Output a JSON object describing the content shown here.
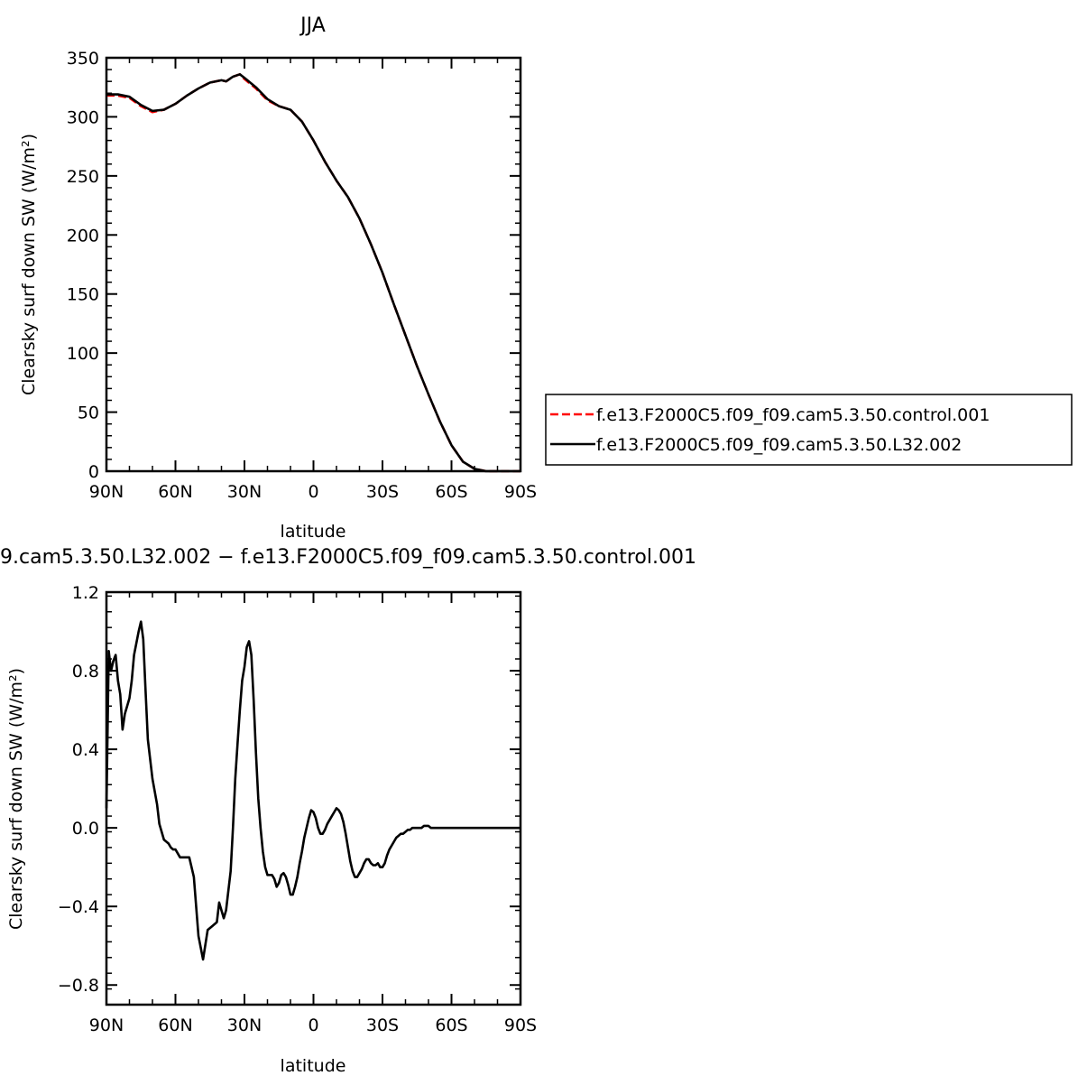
{
  "chart_data": [
    {
      "type": "line",
      "title": "JJA",
      "xlabel": "latitude",
      "ylabel": "Clearsky surf down SW (W/m²)",
      "xlim": [
        90,
        -90
      ],
      "ylim": [
        0,
        350
      ],
      "x_ticks": [
        90,
        60,
        30,
        0,
        -30,
        -60,
        -90
      ],
      "x_tick_labels": [
        "90N",
        "60N",
        "30N",
        "0",
        "30S",
        "60S",
        "90S"
      ],
      "y_ticks": [
        0,
        50,
        100,
        150,
        200,
        250,
        300,
        350
      ],
      "y_tick_labels": [
        "0",
        "50",
        "100",
        "150",
        "200",
        "250",
        "300",
        "350"
      ],
      "legend_position": "right",
      "series": [
        {
          "name": "f.e13.F2000C5.f09_f09.cam5.3.50.control.001",
          "color": "#ff0000",
          "dash": "dashed",
          "x": [
            90,
            85,
            80,
            75,
            70,
            65,
            60,
            55,
            50,
            45,
            40,
            38,
            35,
            32,
            30,
            25,
            20,
            15,
            10,
            5,
            0,
            -5,
            -10,
            -15,
            -20,
            -25,
            -30,
            -35,
            -40,
            -45,
            -50,
            -55,
            -60,
            -65,
            -70,
            -75,
            -80,
            -85,
            -90
          ],
          "y": [
            318,
            318,
            316,
            309,
            304,
            306,
            311,
            318,
            324,
            329,
            331,
            330,
            334,
            336,
            332,
            324,
            314,
            309,
            306,
            296,
            280,
            262,
            246,
            232,
            214,
            192,
            168,
            141,
            115,
            89,
            65,
            42,
            22,
            8,
            2,
            0,
            0,
            0,
            0
          ]
        },
        {
          "name": "f.e13.F2000C5.f09_f09.cam5.3.50.L32.002",
          "color": "#000000",
          "dash": "solid",
          "x": [
            90,
            85,
            80,
            75,
            70,
            65,
            60,
            55,
            50,
            45,
            40,
            38,
            35,
            32,
            30,
            25,
            20,
            15,
            10,
            5,
            0,
            -5,
            -10,
            -15,
            -20,
            -25,
            -30,
            -35,
            -40,
            -45,
            -50,
            -55,
            -60,
            -65,
            -70,
            -75,
            -80,
            -85,
            -90
          ],
          "y": [
            319,
            319,
            317,
            310,
            305,
            306,
            311,
            318,
            324,
            329,
            331,
            330,
            334,
            336,
            333,
            325,
            315,
            309,
            306,
            296,
            280,
            262,
            246,
            232,
            214,
            192,
            168,
            141,
            115,
            89,
            65,
            42,
            22,
            8,
            2,
            0,
            0,
            0,
            0
          ]
        }
      ]
    },
    {
      "type": "line",
      "title": "9.cam5.3.50.L32.002 − f.e13.F2000C5.f09_f09.cam5.3.50.control.001",
      "xlabel": "latitude",
      "ylabel": "Clearsky surf down SW (W/m²)",
      "xlim": [
        90,
        -90
      ],
      "ylim": [
        -0.9,
        1.2
      ],
      "x_ticks": [
        90,
        60,
        30,
        0,
        -30,
        -60,
        -90
      ],
      "x_tick_labels": [
        "90N",
        "60N",
        "30N",
        "0",
        "30S",
        "60S",
        "90S"
      ],
      "y_ticks": [
        -0.8,
        -0.4,
        0.0,
        0.4,
        0.8,
        1.2
      ],
      "y_tick_labels": [
        "−0.8",
        "−0.4",
        "0.0",
        "0.4",
        "0.8",
        "1.2"
      ],
      "series": [
        {
          "color": "#000000",
          "dash": "solid",
          "x": [
            90,
            89,
            88,
            87,
            86,
            85,
            84,
            83,
            82,
            81,
            80,
            79,
            78,
            76,
            75,
            74,
            73,
            72,
            70,
            68,
            67,
            65,
            63,
            62,
            61,
            60,
            58,
            56,
            54,
            52,
            50,
            48,
            46,
            44,
            42,
            41,
            40,
            39,
            38,
            36,
            35,
            34,
            33,
            32,
            31,
            30,
            29,
            28,
            27,
            26,
            25,
            24,
            23,
            22,
            21,
            20,
            19,
            18,
            17,
            16,
            15,
            14,
            13,
            12,
            11,
            10,
            9,
            8,
            7,
            6,
            5,
            4,
            3,
            2,
            1,
            0,
            -1,
            -2,
            -3,
            -4,
            -5,
            -6,
            -7,
            -8,
            -9,
            -10,
            -11,
            -12,
            -13,
            -14,
            -15,
            -16,
            -17,
            -18,
            -19,
            -20,
            -21,
            -22,
            -23,
            -24,
            -25,
            -26,
            -27,
            -28,
            -29,
            -30,
            -31,
            -32,
            -33,
            -34,
            -35,
            -36,
            -37,
            -38,
            -39,
            -40,
            -41,
            -42,
            -43,
            -44,
            -45,
            -46,
            -47,
            -48,
            -49,
            -50,
            -51,
            -52,
            -53,
            -54,
            -55,
            -56,
            -57,
            -58,
            -59,
            -60,
            -62,
            -65,
            -68,
            -70,
            -73,
            -76,
            -80,
            -85,
            -90
          ],
          "y": [
            0.1,
            0.9,
            0.8,
            0.85,
            0.88,
            0.75,
            0.68,
            0.5,
            0.58,
            0.62,
            0.66,
            0.75,
            0.88,
            1.0,
            1.05,
            0.96,
            0.7,
            0.45,
            0.25,
            0.12,
            0.02,
            -0.06,
            -0.08,
            -0.1,
            -0.11,
            -0.11,
            -0.15,
            -0.15,
            -0.15,
            -0.25,
            -0.55,
            -0.67,
            -0.52,
            -0.5,
            -0.48,
            -0.38,
            -0.42,
            -0.46,
            -0.42,
            -0.22,
            0.0,
            0.25,
            0.43,
            0.6,
            0.75,
            0.82,
            0.92,
            0.95,
            0.88,
            0.65,
            0.38,
            0.15,
            0.0,
            -0.12,
            -0.2,
            -0.24,
            -0.24,
            -0.24,
            -0.26,
            -0.3,
            -0.28,
            -0.24,
            -0.23,
            -0.25,
            -0.29,
            -0.34,
            -0.34,
            -0.3,
            -0.25,
            -0.18,
            -0.12,
            -0.05,
            0.0,
            0.05,
            0.09,
            0.08,
            0.05,
            0.0,
            -0.03,
            -0.03,
            -0.01,
            0.02,
            0.04,
            0.06,
            0.08,
            0.1,
            0.09,
            0.07,
            0.03,
            -0.03,
            -0.1,
            -0.17,
            -0.22,
            -0.25,
            -0.25,
            -0.23,
            -0.21,
            -0.18,
            -0.16,
            -0.16,
            -0.18,
            -0.19,
            -0.19,
            -0.18,
            -0.2,
            -0.2,
            -0.18,
            -0.14,
            -0.11,
            -0.09,
            -0.07,
            -0.05,
            -0.04,
            -0.03,
            -0.03,
            -0.02,
            -0.01,
            -0.01,
            0.0,
            0.0,
            0.0,
            0.0,
            0.0,
            0.01,
            0.01,
            0.01,
            0.0,
            0.0,
            0.0,
            0.0,
            0.0,
            0.0,
            0.0,
            0.0,
            0.0,
            0.0,
            0.0,
            0.0,
            0.0,
            0.0,
            0.0,
            0.0,
            0.0,
            0.0,
            0.0
          ]
        }
      ]
    }
  ]
}
